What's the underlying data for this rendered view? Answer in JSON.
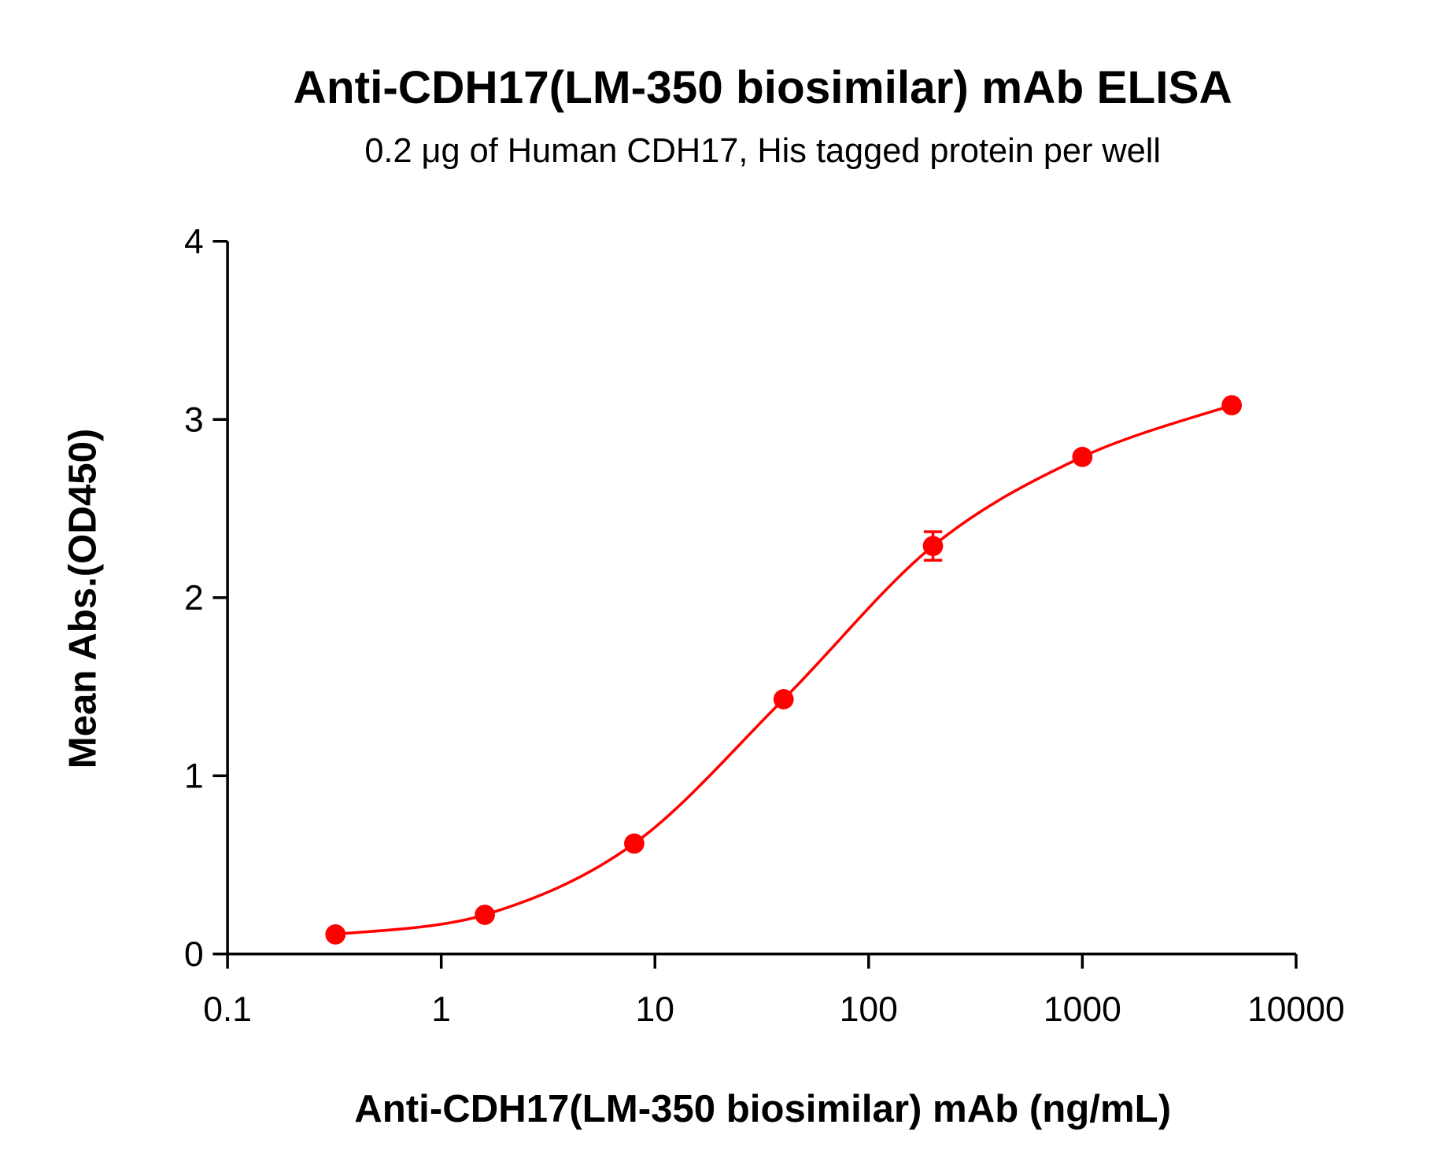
{
  "chart_data": {
    "type": "scatter",
    "title": "Anti-CDH17(LM-350 biosimilar) mAb ELISA",
    "subtitle": "0.2 μg of Human CDH17, His tagged protein per well",
    "xlabel": "Anti-CDH17(LM-350 biosimilar) mAb (ng/mL)",
    "ylabel": "Mean Abs.(OD450)",
    "xscale": "log",
    "xlim": [
      0.1,
      10000
    ],
    "ylim": [
      0,
      4
    ],
    "xticks": [
      "0.1",
      "1",
      "10",
      "100",
      "1000",
      "10000"
    ],
    "yticks": [
      "0",
      "1",
      "2",
      "3",
      "4"
    ],
    "grid": false,
    "color": "#ff0000",
    "fit_curve": true,
    "x": [
      0.32,
      1.6,
      8,
      40,
      200,
      1000,
      5000
    ],
    "y": [
      0.11,
      0.22,
      0.62,
      1.43,
      2.29,
      2.79,
      3.08
    ],
    "error": [
      0.01,
      0.01,
      0.01,
      0.02,
      0.08,
      0.02,
      0.01
    ]
  }
}
